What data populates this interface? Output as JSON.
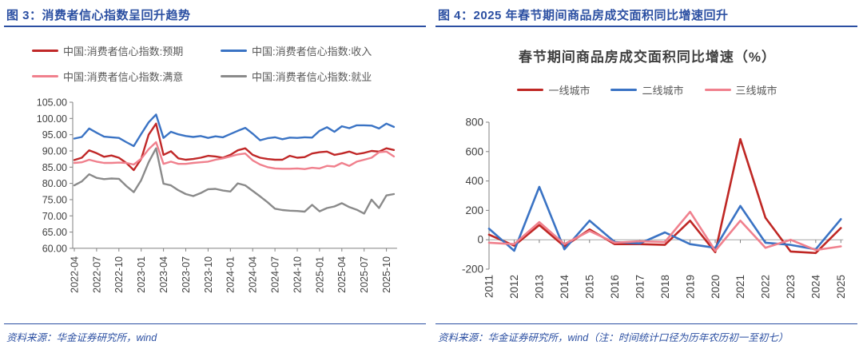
{
  "figure3": {
    "header": "图 3：消费者信心指数呈回升趋势",
    "source": "资料来源：华金证券研究所，wind"
  },
  "figure4": {
    "header": "图 4：2025 年春节期间商品房成交面积同比增速回升",
    "source": "资料来源：华金证券研究所，wind（注：时间统计口径为历年农历初一至初七）"
  },
  "colors": {
    "accent_blue": "#2b4fa2",
    "line_red": "#c02828",
    "line_blue": "#3a73c4",
    "line_pink": "#f0808d",
    "line_gray": "#8a8a8a",
    "axis_gray": "#808080"
  },
  "chart_data": [
    {
      "type": "line",
      "title": "",
      "ylim": [
        60,
        105
      ],
      "ytick_step": 5,
      "ytick_format": "two-decimals",
      "xtick_every": 3,
      "grid": false,
      "legend_position": "top",
      "categories": [
        "2022-04",
        "2022-05",
        "2022-06",
        "2022-07",
        "2022-08",
        "2022-09",
        "2022-10",
        "2022-11",
        "2022-12",
        "2023-01",
        "2023-02",
        "2023-03",
        "2023-04",
        "2023-05",
        "2023-06",
        "2023-07",
        "2023-08",
        "2023-09",
        "2023-10",
        "2023-11",
        "2023-12",
        "2024-01",
        "2024-02",
        "2024-03",
        "2024-04",
        "2024-05",
        "2024-06",
        "2024-07",
        "2024-08",
        "2024-09",
        "2024-10",
        "2024-11",
        "2024-12",
        "2025-01",
        "2025-02",
        "2025-03",
        "2025-04",
        "2025-05",
        "2025-06",
        "2025-07",
        "2025-08",
        "2025-09",
        "2025-10",
        "2025-11"
      ],
      "series": [
        {
          "name": "中国:消费者信心指数:预期",
          "color": "#c02828",
          "values": [
            87.2,
            87.9,
            90.2,
            89.3,
            88.2,
            88.6,
            87.9,
            86.3,
            84.1,
            87.5,
            95.0,
            98.4,
            88.8,
            89.9,
            87.7,
            87.3,
            87.5,
            87.9,
            88.5,
            88.3,
            87.9,
            88.8,
            90.2,
            90.8,
            88.8,
            87.9,
            87.5,
            87.3,
            87.3,
            88.5,
            87.9,
            88.1,
            89.2,
            89.6,
            89.8,
            88.8,
            89.2,
            89.8,
            89.0,
            89.4,
            90.0,
            89.8,
            90.8,
            90.3
          ]
        },
        {
          "name": "中国:消费者信心指数:收入",
          "color": "#3a73c4",
          "values": [
            93.8,
            94.3,
            96.9,
            95.6,
            94.4,
            94.2,
            94.0,
            92.7,
            91.5,
            95.2,
            98.8,
            101.2,
            94.0,
            95.9,
            95.1,
            94.6,
            94.3,
            94.6,
            94.0,
            94.5,
            94.2,
            95.2,
            96.2,
            97.1,
            95.3,
            93.3,
            93.9,
            94.2,
            93.6,
            94.1,
            94.0,
            94.2,
            94.1,
            96.2,
            97.3,
            95.9,
            97.6,
            97.0,
            97.9,
            97.9,
            97.8,
            96.9,
            98.4,
            97.4
          ]
        },
        {
          "name": "中国:消费者信心指数:满意",
          "color": "#f0808d",
          "values": [
            86.3,
            86.5,
            87.3,
            86.7,
            86.3,
            86.3,
            86.4,
            86.3,
            85.8,
            87.6,
            90.5,
            92.7,
            86.0,
            86.7,
            86.0,
            86.0,
            86.3,
            86.5,
            86.7,
            87.3,
            87.7,
            88.3,
            88.9,
            89.2,
            87.1,
            85.8,
            85.0,
            84.6,
            84.5,
            84.5,
            84.6,
            84.4,
            84.8,
            84.6,
            85.4,
            85.2,
            86.3,
            85.4,
            86.7,
            87.3,
            87.9,
            89.6,
            89.8,
            88.3
          ]
        },
        {
          "name": "中国:消费者信心指数:就业",
          "color": "#8a8a8a",
          "values": [
            79.4,
            80.6,
            82.8,
            81.7,
            81.3,
            81.5,
            81.4,
            79.2,
            77.3,
            81.0,
            86.5,
            90.8,
            79.9,
            79.4,
            77.9,
            76.7,
            76.1,
            77.0,
            78.2,
            78.3,
            77.8,
            77.5,
            80.0,
            79.4,
            77.7,
            76.0,
            74.2,
            72.2,
            71.8,
            71.6,
            71.5,
            71.3,
            73.4,
            71.4,
            72.4,
            72.9,
            73.9,
            72.7,
            71.9,
            70.7,
            75.0,
            72.4,
            76.3,
            76.7
          ]
        }
      ]
    },
    {
      "type": "line",
      "title": "春节期间商品房成交面积同比增速（%）",
      "ylim": [
        -200,
        800
      ],
      "ytick_step": 200,
      "xtick_every": 1,
      "grid": false,
      "zero_axis": true,
      "legend_position": "top",
      "categories": [
        "2011",
        "2012",
        "2013",
        "2014",
        "2015",
        "2016",
        "2017",
        "2018",
        "2019",
        "2020",
        "2021",
        "2022",
        "2023",
        "2024",
        "2025"
      ],
      "series": [
        {
          "name": "一线城市",
          "color": "#bf2724",
          "values": [
            35,
            -40,
            100,
            -45,
            70,
            -30,
            -30,
            -35,
            130,
            -85,
            685,
            150,
            -80,
            -90,
            80
          ]
        },
        {
          "name": "二线城市",
          "color": "#3a73c4",
          "values": [
            75,
            -75,
            360,
            -65,
            130,
            -15,
            -25,
            50,
            -30,
            -55,
            230,
            -20,
            -35,
            -65,
            140
          ]
        },
        {
          "name": "三线城市",
          "color": "#f0808d",
          "values": [
            -20,
            -30,
            120,
            -30,
            60,
            -20,
            -10,
            -15,
            190,
            -75,
            130,
            -55,
            0,
            -70,
            -45
          ]
        }
      ]
    }
  ]
}
